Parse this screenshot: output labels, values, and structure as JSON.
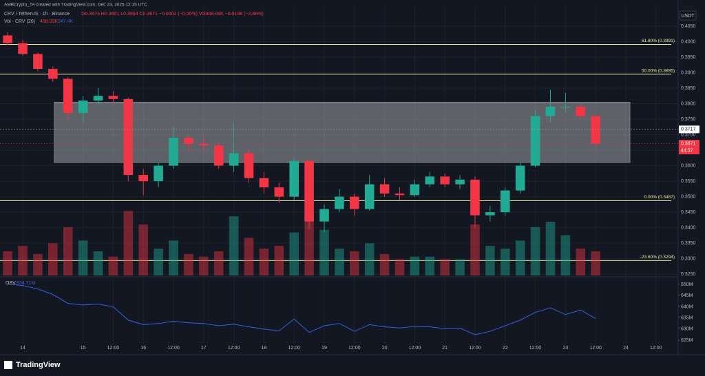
{
  "header": {
    "title": "AMBCrypto_TA created with TradingView.com, Dec 23, 2025 12:15 UTC",
    "symbol": "CRV / TetherUS · 1h · Binance",
    "ohlc": "O0.3673 H0.3691 L0.3664 C0.3671 −0.0002 (−0.05%) Vol408.03K −0.0108 (−2.86%)",
    "vol_name": "Vol · CRV (20)",
    "vol_value": "408.03K",
    "vol_ma": "947.4K",
    "currency": "USDT",
    "brand": "TradingView"
  },
  "chart_data": [
    {
      "type": "candlestick",
      "up_color": "#22ab94",
      "down_color": "#f23645",
      "grid": true,
      "xlim": [
        13.623,
        24.868
      ],
      "ylim": [
        0.3246,
        0.4112
      ],
      "vlim": [
        0,
        10000000
      ],
      "xticks": [
        {
          "value": 14,
          "label": "14"
        },
        {
          "value": 15,
          "label": "15"
        },
        {
          "value": 15.5,
          "label": "12:00"
        },
        {
          "value": 16,
          "label": "16"
        },
        {
          "value": 16.5,
          "label": "12:00"
        },
        {
          "value": 17,
          "label": "17"
        },
        {
          "value": 17.5,
          "label": "12:00"
        },
        {
          "value": 18,
          "label": "18"
        },
        {
          "value": 18.5,
          "label": "12:00"
        },
        {
          "value": 19,
          "label": "19"
        },
        {
          "value": 19.5,
          "label": "12:00"
        },
        {
          "value": 20,
          "label": "20"
        },
        {
          "value": 20.5,
          "label": "12:00"
        },
        {
          "value": 21,
          "label": "21"
        },
        {
          "value": 21.5,
          "label": "12:00"
        },
        {
          "value": 22,
          "label": "22"
        },
        {
          "value": 22.5,
          "label": "12:00"
        },
        {
          "value": 23,
          "label": "23"
        },
        {
          "value": 23.5,
          "label": "12:00"
        },
        {
          "value": 24,
          "label": "24"
        },
        {
          "value": 24.5,
          "label": "12:00"
        }
      ],
      "yticks": [
        {
          "value": 0.405,
          "label": "0.4050"
        },
        {
          "value": 0.4,
          "label": "0.4000"
        },
        {
          "value": 0.395,
          "label": "0.3950"
        },
        {
          "value": 0.39,
          "label": "0.3900"
        },
        {
          "value": 0.385,
          "label": "0.3850"
        },
        {
          "value": 0.38,
          "label": "0.3800"
        },
        {
          "value": 0.375,
          "label": "0.3750"
        },
        {
          "value": 0.37,
          "label": "0.3700"
        },
        {
          "value": 0.365,
          "label": "0.3650"
        },
        {
          "value": 0.36,
          "label": "0.3600"
        },
        {
          "value": 0.355,
          "label": "0.3550"
        },
        {
          "value": 0.35,
          "label": "0.3500"
        },
        {
          "value": 0.345,
          "label": "0.3450"
        },
        {
          "value": 0.34,
          "label": "0.3400"
        },
        {
          "value": 0.335,
          "label": "0.3350"
        },
        {
          "value": 0.33,
          "label": "0.3300"
        },
        {
          "value": 0.325,
          "label": "0.3250"
        }
      ],
      "x": [
        13.75,
        14,
        14.25,
        14.5,
        14.75,
        15,
        15.25,
        15.5,
        15.75,
        16,
        16.25,
        16.5,
        16.75,
        17,
        17.25,
        17.5,
        17.75,
        18,
        18.25,
        18.5,
        18.75,
        19,
        19.25,
        19.5,
        19.75,
        20,
        20.25,
        20.5,
        20.75,
        21,
        21.25,
        21.5,
        21.75,
        22,
        22.25,
        22.5,
        22.75,
        23,
        23.25,
        23.5
      ],
      "open": [
        0.402,
        0.3995,
        0.396,
        0.3912,
        0.388,
        0.377,
        0.381,
        0.3825,
        0.3815,
        0.357,
        0.355,
        0.36,
        0.369,
        0.367,
        0.3665,
        0.36,
        0.364,
        0.356,
        0.353,
        0.35,
        0.3615,
        0.342,
        0.346,
        0.35,
        0.346,
        0.354,
        0.351,
        0.3505,
        0.354,
        0.3565,
        0.354,
        0.3555,
        0.344,
        0.345,
        0.352,
        0.36,
        0.376,
        0.379,
        0.379,
        0.376
      ],
      "high": [
        0.403,
        0.4005,
        0.3965,
        0.392,
        0.3885,
        0.3825,
        0.385,
        0.384,
        0.382,
        0.359,
        0.361,
        0.3725,
        0.37,
        0.369,
        0.3675,
        0.374,
        0.365,
        0.358,
        0.3545,
        0.3625,
        0.362,
        0.3475,
        0.3525,
        0.351,
        0.357,
        0.356,
        0.353,
        0.3555,
        0.358,
        0.3575,
        0.357,
        0.3565,
        0.347,
        0.353,
        0.361,
        0.378,
        0.3845,
        0.3835,
        0.38,
        0.3765
      ],
      "low": [
        0.399,
        0.3955,
        0.3905,
        0.387,
        0.375,
        0.374,
        0.3795,
        0.38,
        0.355,
        0.3505,
        0.353,
        0.359,
        0.365,
        0.3645,
        0.359,
        0.358,
        0.3545,
        0.351,
        0.348,
        0.349,
        0.3395,
        0.3385,
        0.345,
        0.344,
        0.3455,
        0.35,
        0.349,
        0.35,
        0.353,
        0.353,
        0.3525,
        0.34,
        0.342,
        0.344,
        0.351,
        0.3595,
        0.374,
        0.377,
        0.375,
        0.366
      ],
      "close": [
        0.3995,
        0.396,
        0.3912,
        0.388,
        0.377,
        0.381,
        0.3825,
        0.3815,
        0.357,
        0.355,
        0.36,
        0.369,
        0.367,
        0.3665,
        0.36,
        0.364,
        0.356,
        0.353,
        0.35,
        0.3615,
        0.342,
        0.346,
        0.35,
        0.346,
        0.354,
        0.351,
        0.3505,
        0.354,
        0.3565,
        0.354,
        0.3555,
        0.344,
        0.345,
        0.352,
        0.36,
        0.376,
        0.379,
        0.379,
        0.376,
        0.3671
      ],
      "volume": [
        900000,
        1100000,
        800000,
        1200000,
        1800000,
        1300000,
        900000,
        700000,
        2400000,
        1900000,
        1000000,
        1300000,
        800000,
        700000,
        900000,
        2200000,
        1400000,
        1000000,
        1100000,
        1600000,
        2300000,
        1700000,
        1000000,
        900000,
        1200000,
        800000,
        600000,
        700000,
        700000,
        600000,
        600000,
        1900000,
        1100000,
        1000000,
        1300000,
        1800000,
        2000000,
        1500000,
        1000000,
        900000
      ],
      "levels": [
        {
          "value": 0.3991,
          "label": "61.80% (0.3991)"
        },
        {
          "value": 0.3895,
          "label": "50.00% (0.3895)"
        },
        {
          "value": 0.3487,
          "label": "0.00% (0.3487)"
        },
        {
          "value": 0.3294,
          "label": "-23.60% (0.3294)"
        }
      ],
      "level_color": "#e8e6a0",
      "zone": {
        "xlim": [
          14.52,
          24.07
        ],
        "ylim": [
          0.361,
          0.3805
        ]
      },
      "crosshair": {
        "value": 0.3717,
        "label": "0.3717"
      },
      "last_price": {
        "value": 0.3671,
        "label": "0.3671",
        "countdown": "44:57"
      }
    },
    {
      "type": "line",
      "name": "OBV",
      "value_label": "634.71M",
      "color": "#3a5fd8",
      "xlim": [
        13.623,
        24.868
      ],
      "ylim": [
        623.15,
        652.8
      ],
      "yticks": [
        {
          "value": 650,
          "label": "650M"
        },
        {
          "value": 645,
          "label": "645M"
        },
        {
          "value": 640,
          "label": "640M"
        },
        {
          "value": 635,
          "label": "635M"
        },
        {
          "value": 630,
          "label": "630M"
        },
        {
          "value": 625,
          "label": "625M"
        }
      ],
      "x": [
        13.75,
        14,
        14.25,
        14.5,
        14.75,
        15,
        15.25,
        15.5,
        15.75,
        16,
        16.25,
        16.5,
        16.75,
        17,
        17.25,
        17.5,
        17.75,
        18,
        18.25,
        18.5,
        18.75,
        19,
        19.25,
        19.5,
        19.75,
        20,
        20.25,
        20.5,
        20.75,
        21,
        21.25,
        21.5,
        21.75,
        22,
        22.25,
        22.5,
        22.75,
        23,
        23.25,
        23.5
      ],
      "values": [
        650.2,
        649.5,
        648,
        645.5,
        641.5,
        640.8,
        641.2,
        640,
        634,
        632,
        632.5,
        633.5,
        632.8,
        632.5,
        631.5,
        632.2,
        631,
        630,
        629.2,
        634.5,
        628.5,
        631.5,
        632.5,
        629,
        632,
        631,
        630.5,
        631.2,
        631,
        630.2,
        630.4,
        627.5,
        629,
        631.5,
        634,
        637.5,
        639.5,
        636.5,
        638.5,
        634.71
      ]
    }
  ]
}
